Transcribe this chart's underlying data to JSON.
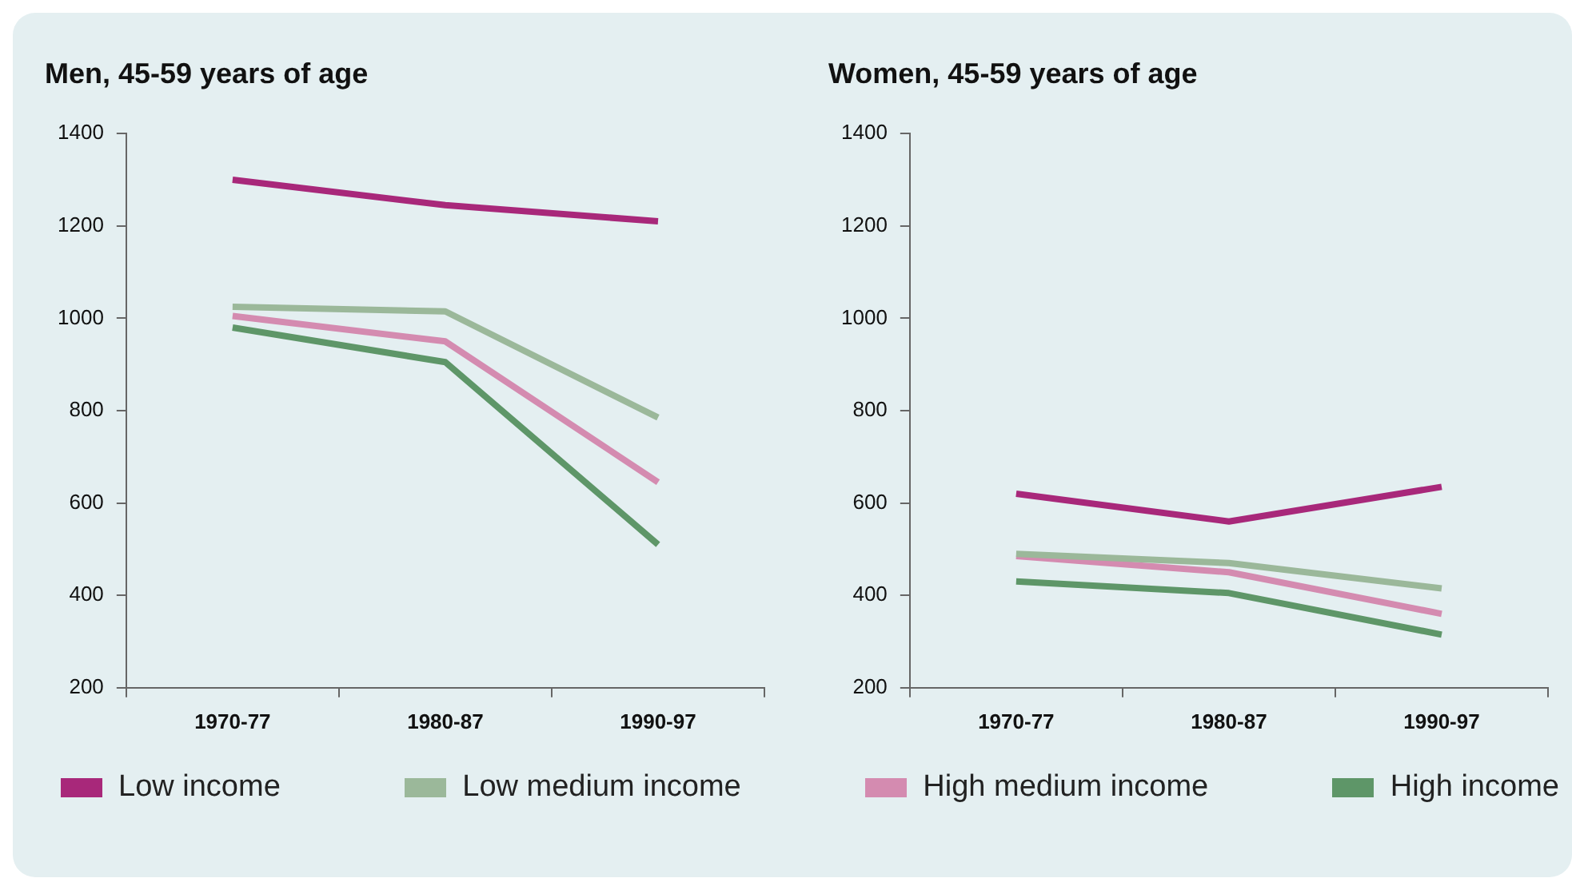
{
  "chart_data": [
    {
      "type": "line",
      "title": "Men, 45-59 years of age",
      "categories": [
        "1970-77",
        "1980-87",
        "1990-97"
      ],
      "ylim": [
        200,
        1400
      ],
      "yticks": [
        200,
        400,
        600,
        800,
        1000,
        1200,
        1400
      ],
      "grid": false,
      "legend": "bottom",
      "marker": "none",
      "line_style": "solid",
      "series": [
        {
          "name": "Low income",
          "color": "#a8287a",
          "values": [
            1300,
            1245,
            1210
          ]
        },
        {
          "name": "Low medium income",
          "color": "#9bb89a",
          "values": [
            1025,
            1015,
            785
          ]
        },
        {
          "name": "High medium income",
          "color": "#d48bb0",
          "values": [
            1005,
            950,
            645
          ]
        },
        {
          "name": "High income",
          "color": "#5e9668",
          "values": [
            980,
            905,
            510
          ]
        }
      ]
    },
    {
      "type": "line",
      "title": "Women, 45-59 years of age",
      "categories": [
        "1970-77",
        "1980-87",
        "1990-97"
      ],
      "ylim": [
        200,
        1400
      ],
      "yticks": [
        200,
        400,
        600,
        800,
        1000,
        1200,
        1400
      ],
      "grid": false,
      "marker": "none",
      "line_style": "solid",
      "series": [
        {
          "color": "#a8287a",
          "values": [
            620,
            560,
            635
          ]
        },
        {
          "color": "#9bb89a",
          "values": [
            490,
            470,
            415
          ]
        },
        {
          "color": "#d48bb0",
          "values": [
            485,
            450,
            360
          ]
        },
        {
          "color": "#5e9668",
          "values": [
            430,
            405,
            315
          ]
        }
      ]
    }
  ]
}
